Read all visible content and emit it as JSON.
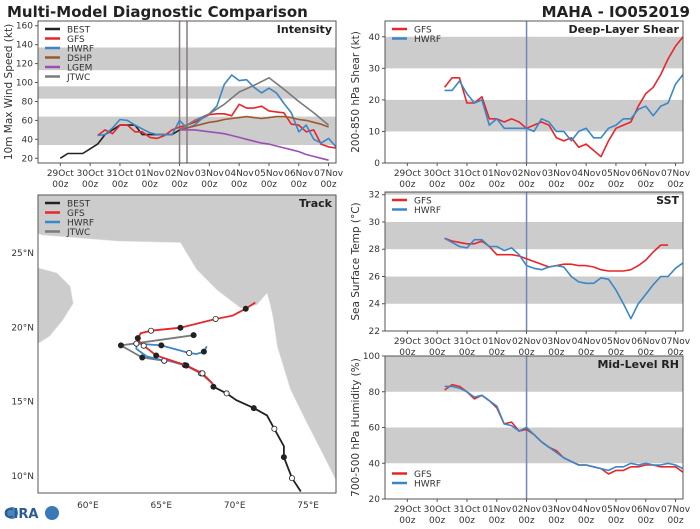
{
  "header": {
    "title": "Multi-Model Diagnostic Comparison",
    "storm": "MAHA - IO052019"
  },
  "logo_text": "CIRA",
  "colors": {
    "BEST": "#222222",
    "GFS": "#e8262a",
    "HWRF": "#3a87c8",
    "DSHP": "#9c5a2c",
    "LGEM": "#9b4fb5",
    "JTWC": "#7a7a7a",
    "band": "#cccccc",
    "land": "#cccccc"
  },
  "time_ticks": [
    {
      "day": "29Oct",
      "hour": "00z",
      "t": "10-29 00z"
    },
    {
      "day": "30Oct",
      "hour": "00z",
      "t": "10-30 00z"
    },
    {
      "day": "31Oct",
      "hour": "00z",
      "t": "10-31 00z"
    },
    {
      "day": "01Nov",
      "hour": "00z",
      "t": "11-01 00z"
    },
    {
      "day": "02Nov",
      "hour": "00z",
      "t": "11-02 00z"
    },
    {
      "day": "03Nov",
      "hour": "00z",
      "t": "11-03 00z"
    },
    {
      "day": "04Nov",
      "hour": "00z",
      "t": "11-04 00z"
    },
    {
      "day": "05Nov",
      "hour": "00z",
      "t": "11-05 00z"
    },
    {
      "day": "06Nov",
      "hour": "00z",
      "t": "11-06 00z"
    },
    {
      "day": "07Nov",
      "hour": "00z",
      "t": "11-07 00z"
    }
  ],
  "chart_data": [
    {
      "id": "intensity",
      "type": "line",
      "title": "Intensity",
      "ylabel": "10m Max Wind Speed (kt)",
      "xlim": [
        "10-28 06z",
        "11-07 06z"
      ],
      "ylim": [
        15,
        165
      ],
      "yticks": [
        20,
        40,
        60,
        80,
        100,
        120,
        140,
        160
      ],
      "bands": [
        [
          34,
          64
        ],
        [
          83,
          96
        ],
        [
          113,
          137
        ]
      ],
      "vlines": [
        "11-02 00z",
        "11-02 06z"
      ],
      "vline_color": "#8a7a80",
      "legend": "top-left",
      "grid": false,
      "series": [
        {
          "name": "BEST",
          "start": "10-29 00z",
          "step_h": 6,
          "values": [
            20,
            25,
            25,
            25,
            30,
            35,
            45,
            50,
            55,
            55,
            55,
            45,
            45,
            45,
            45,
            45,
            50,
            55
          ]
        },
        {
          "name": "GFS",
          "start": "10-30 06z",
          "step_h": 6,
          "values": [
            44,
            50,
            46,
            55,
            55,
            48,
            48,
            42,
            41,
            44,
            50,
            53,
            55,
            58,
            62,
            66,
            67,
            67,
            65,
            77,
            73,
            73,
            75,
            70,
            69,
            68,
            56,
            55,
            48,
            50,
            35,
            32,
            31
          ]
        },
        {
          "name": "HWRF",
          "start": "10-30 06z",
          "step_h": 6,
          "values": [
            44,
            45,
            52,
            61,
            60,
            55,
            51,
            47,
            45,
            45,
            45,
            60,
            52,
            55,
            62,
            67,
            75,
            98,
            108,
            102,
            103,
            95,
            89,
            94,
            89,
            78,
            68,
            48,
            55,
            40,
            36,
            41,
            32
          ]
        },
        {
          "name": "DSHP",
          "start": "11-02 00z",
          "step_h": 6,
          "values": [
            50,
            52,
            54,
            56,
            58,
            59,
            61,
            62,
            63,
            64,
            63,
            62,
            63,
            64,
            64,
            63,
            61,
            60,
            58,
            56,
            53
          ]
        },
        {
          "name": "LGEM",
          "start": "11-02 00z",
          "step_h": 6,
          "values": [
            50,
            50,
            50,
            49,
            48,
            47,
            46,
            44,
            42,
            40,
            38,
            36,
            35,
            33,
            31,
            29,
            27,
            24,
            22,
            20,
            18
          ]
        },
        {
          "name": "JTWC",
          "points": [
            [
              "11-02 00z",
              50
            ],
            [
              "11-02 12z",
              60
            ],
            [
              "11-03 00z",
              67
            ],
            [
              "11-03 12z",
              77
            ],
            [
              "11-04 00z",
              90
            ],
            [
              "11-04 12z",
              97
            ],
            [
              "11-05 00z",
              105
            ],
            [
              "11-05 12z",
              93
            ],
            [
              "11-06 00z",
              80
            ],
            [
              "11-06 12z",
              68
            ],
            [
              "11-07 00z",
              55
            ]
          ]
        }
      ]
    },
    {
      "id": "shear",
      "type": "line",
      "title": "Deep-Layer Shear",
      "ylabel": "200-850 hPa Shear (kt)",
      "xlim": [
        "10-28 06z",
        "11-07 06z"
      ],
      "ylim": [
        0,
        45
      ],
      "yticks": [
        0,
        10,
        20,
        30,
        40
      ],
      "bands": [
        [
          10,
          20
        ],
        [
          30,
          40
        ]
      ],
      "vlines": [
        "11-02 00z"
      ],
      "vline_color": "#7088b8",
      "legend": "top-left",
      "grid": false,
      "series": [
        {
          "name": "GFS",
          "start": "10-30 06z",
          "step_h": 6,
          "values": [
            24,
            27,
            27,
            19,
            19,
            21,
            14,
            14,
            13,
            14,
            13,
            11,
            12,
            13,
            12,
            8,
            7,
            8,
            5,
            6,
            4,
            2,
            7,
            11,
            12,
            13,
            18,
            22,
            24,
            28,
            33,
            37,
            40
          ]
        },
        {
          "name": "HWRF",
          "start": "10-30 06z",
          "step_h": 6,
          "values": [
            23,
            23,
            26,
            22,
            19,
            20,
            12,
            14,
            11,
            11,
            11,
            11,
            10,
            14,
            13,
            10,
            10,
            7,
            10,
            11,
            8,
            8,
            11,
            12,
            14,
            14,
            17,
            18,
            15,
            18,
            19,
            25,
            28
          ]
        }
      ]
    },
    {
      "id": "sst",
      "type": "line",
      "title": "SST",
      "ylabel": "Sea Surface Temp (°C)",
      "xlim": [
        "10-28 06z",
        "11-07 06z"
      ],
      "ylim": [
        22,
        32.2
      ],
      "yticks": [
        22,
        24,
        26,
        28,
        30,
        32
      ],
      "bands": [
        [
          24,
          26
        ],
        [
          28,
          30
        ],
        [
          32,
          32.2
        ]
      ],
      "vlines": [
        "11-02 00z"
      ],
      "vline_color": "#7088b8",
      "legend": "top-left",
      "grid": false,
      "series": [
        {
          "name": "GFS",
          "start": "10-30 06z",
          "step_h": 6,
          "values": [
            28.8,
            28.6,
            28.5,
            28.4,
            28.4,
            28.6,
            28.2,
            27.6,
            27.6,
            27.6,
            27.5,
            27.3,
            27.1,
            26.9,
            26.7,
            26.8,
            26.9,
            26.9,
            26.8,
            26.8,
            26.7,
            26.5,
            26.4,
            26.4,
            26.4,
            26.5,
            26.8,
            27.2,
            27.8,
            28.3,
            28.3
          ]
        },
        {
          "name": "HWRF",
          "start": "10-30 06z",
          "step_h": 6,
          "values": [
            28.8,
            28.5,
            28.2,
            28.1,
            28.7,
            28.7,
            28.2,
            28.2,
            27.9,
            28.1,
            27.6,
            26.8,
            26.6,
            26.5,
            26.7,
            26.8,
            26.7,
            26.0,
            25.6,
            25.5,
            25.5,
            25.9,
            25.8,
            25.0,
            24.0,
            22.9,
            24.0,
            24.7,
            25.4,
            26.0,
            26.0,
            26.6,
            27.0
          ]
        }
      ]
    },
    {
      "id": "rh",
      "type": "line",
      "title": "Mid-Level RH",
      "ylabel": "700-500 hPa Humidity (%)",
      "xlim": [
        "10-28 06z",
        "11-07 06z"
      ],
      "ylim": [
        20,
        100
      ],
      "yticks": [
        20,
        40,
        60,
        80,
        100
      ],
      "bands": [
        [
          40,
          60
        ],
        [
          80,
          100
        ]
      ],
      "vlines": [
        "11-02 00z"
      ],
      "vline_color": "#7088b8",
      "legend": "bottom-left",
      "grid": false,
      "series": [
        {
          "name": "GFS",
          "start": "10-30 06z",
          "step_h": 6,
          "values": [
            81,
            84,
            83,
            80,
            76,
            78,
            75,
            71,
            62,
            63,
            58,
            59,
            56,
            52,
            49,
            47,
            43,
            41,
            39,
            39,
            38,
            37,
            34,
            36,
            36,
            38,
            38,
            39,
            39,
            38,
            38,
            38,
            35
          ]
        },
        {
          "name": "HWRF",
          "start": "10-30 06z",
          "step_h": 6,
          "values": [
            83,
            83,
            82,
            80,
            77,
            78,
            75,
            72,
            62,
            61,
            58,
            60,
            56,
            52,
            49,
            46,
            43,
            41,
            39,
            39,
            38,
            37,
            36,
            38,
            38,
            40,
            39,
            40,
            39,
            39,
            40,
            39,
            37
          ]
        }
      ]
    },
    {
      "id": "track",
      "type": "map",
      "title": "Track",
      "lon_range": [
        56.6,
        76.9
      ],
      "lat_range": [
        8.85,
        28.9
      ],
      "lon_ticks": [
        {
          "v": 60,
          "label": "60°E"
        },
        {
          "v": 65,
          "label": "65°E"
        },
        {
          "v": 70,
          "label": "70°E"
        },
        {
          "v": 75,
          "label": "75°E"
        }
      ],
      "lat_ticks": [
        {
          "v": 10,
          "label": "10°N"
        },
        {
          "v": 15,
          "label": "15°N"
        },
        {
          "v": 20,
          "label": "20°N"
        },
        {
          "v": 25,
          "label": "25°N"
        }
      ],
      "legend": "top-left",
      "land": [
        [
          [
            56.6,
            28.9
          ],
          [
            76.9,
            28.9
          ],
          [
            76.9,
            9.7
          ],
          [
            76.2,
            11.1
          ],
          [
            74.9,
            13.6
          ],
          [
            73.8,
            15.8
          ],
          [
            72.9,
            18.7
          ],
          [
            72.6,
            20.7
          ],
          [
            72.4,
            21.6
          ],
          [
            72.2,
            22.3
          ],
          [
            71.5,
            21.5
          ],
          [
            70.4,
            21.3
          ],
          [
            68.8,
            22.5
          ],
          [
            67.4,
            23.9
          ],
          [
            66.3,
            25.7
          ],
          [
            62.0,
            25.8
          ],
          [
            56.9,
            26.2
          ],
          [
            56.6,
            26.3
          ]
        ],
        [
          [
            56.6,
            24.0
          ],
          [
            57.9,
            23.65
          ],
          [
            58.8,
            22.75
          ],
          [
            59.0,
            21.6
          ],
          [
            58.3,
            20.5
          ],
          [
            57.4,
            19.4
          ],
          [
            56.6,
            18.9
          ]
        ]
      ],
      "tracks": [
        {
          "name": "BEST",
          "points": [
            [
              74.5,
              8.95,
              ""
            ],
            [
              73.9,
              9.85,
              "open"
            ],
            [
              73.35,
              11.26,
              "filled"
            ],
            [
              73.35,
              12.0,
              ""
            ],
            [
              72.7,
              13.17,
              "open"
            ],
            [
              72.2,
              14.07,
              ""
            ],
            [
              71.3,
              14.56,
              "filled"
            ],
            [
              70.1,
              15.1,
              ""
            ],
            [
              69.45,
              15.55,
              "open"
            ],
            [
              68.55,
              16.0,
              "filled"
            ]
          ]
        },
        {
          "name": "GFS",
          "points": [
            [
              68.5,
              16.2,
              ""
            ],
            [
              67.8,
              16.9,
              "open"
            ],
            [
              66.7,
              17.43,
              "filled"
            ],
            [
              64.65,
              18.1,
              "filled"
            ],
            [
              63.8,
              18.76,
              "open"
            ],
            [
              63.5,
              19.05,
              ""
            ],
            [
              63.4,
              19.27,
              "filled"
            ],
            [
              63.6,
              19.6,
              ""
            ],
            [
              64.3,
              19.77,
              "open"
            ],
            [
              66.3,
              19.97,
              "filled"
            ],
            [
              68.7,
              20.56,
              "open"
            ],
            [
              69.85,
              20.78,
              ""
            ],
            [
              70.75,
              21.25,
              "filled"
            ],
            [
              71.4,
              21.67,
              ""
            ]
          ]
        },
        {
          "name": "HWRF",
          "points": [
            [
              68.5,
              16.2,
              ""
            ],
            [
              67.8,
              16.9,
              "open"
            ],
            [
              66.7,
              17.43,
              "filled"
            ],
            [
              65.6,
              17.75,
              ""
            ],
            [
              65.2,
              17.75,
              "open"
            ],
            [
              64.0,
              18.04,
              ""
            ],
            [
              63.3,
              18.55,
              ""
            ],
            [
              63.3,
              18.9,
              "open"
            ],
            [
              65.0,
              18.78,
              "filled"
            ],
            [
              66.9,
              18.27,
              "open"
            ],
            [
              67.4,
              18.2,
              ""
            ],
            [
              67.9,
              18.36,
              "filled"
            ],
            [
              68.1,
              18.72,
              ""
            ]
          ]
        },
        {
          "name": "JTWC",
          "points": [
            [
              68.5,
              16.2,
              ""
            ],
            [
              67.7,
              16.9,
              "open"
            ],
            [
              66.6,
              17.45,
              "filled"
            ],
            [
              65.5,
              17.75,
              ""
            ],
            [
              65.2,
              17.75,
              "open"
            ],
            [
              63.7,
              17.97,
              "filled"
            ],
            [
              62.25,
              18.78,
              "filled"
            ],
            [
              67.2,
              19.47,
              "filled"
            ]
          ]
        }
      ]
    }
  ]
}
